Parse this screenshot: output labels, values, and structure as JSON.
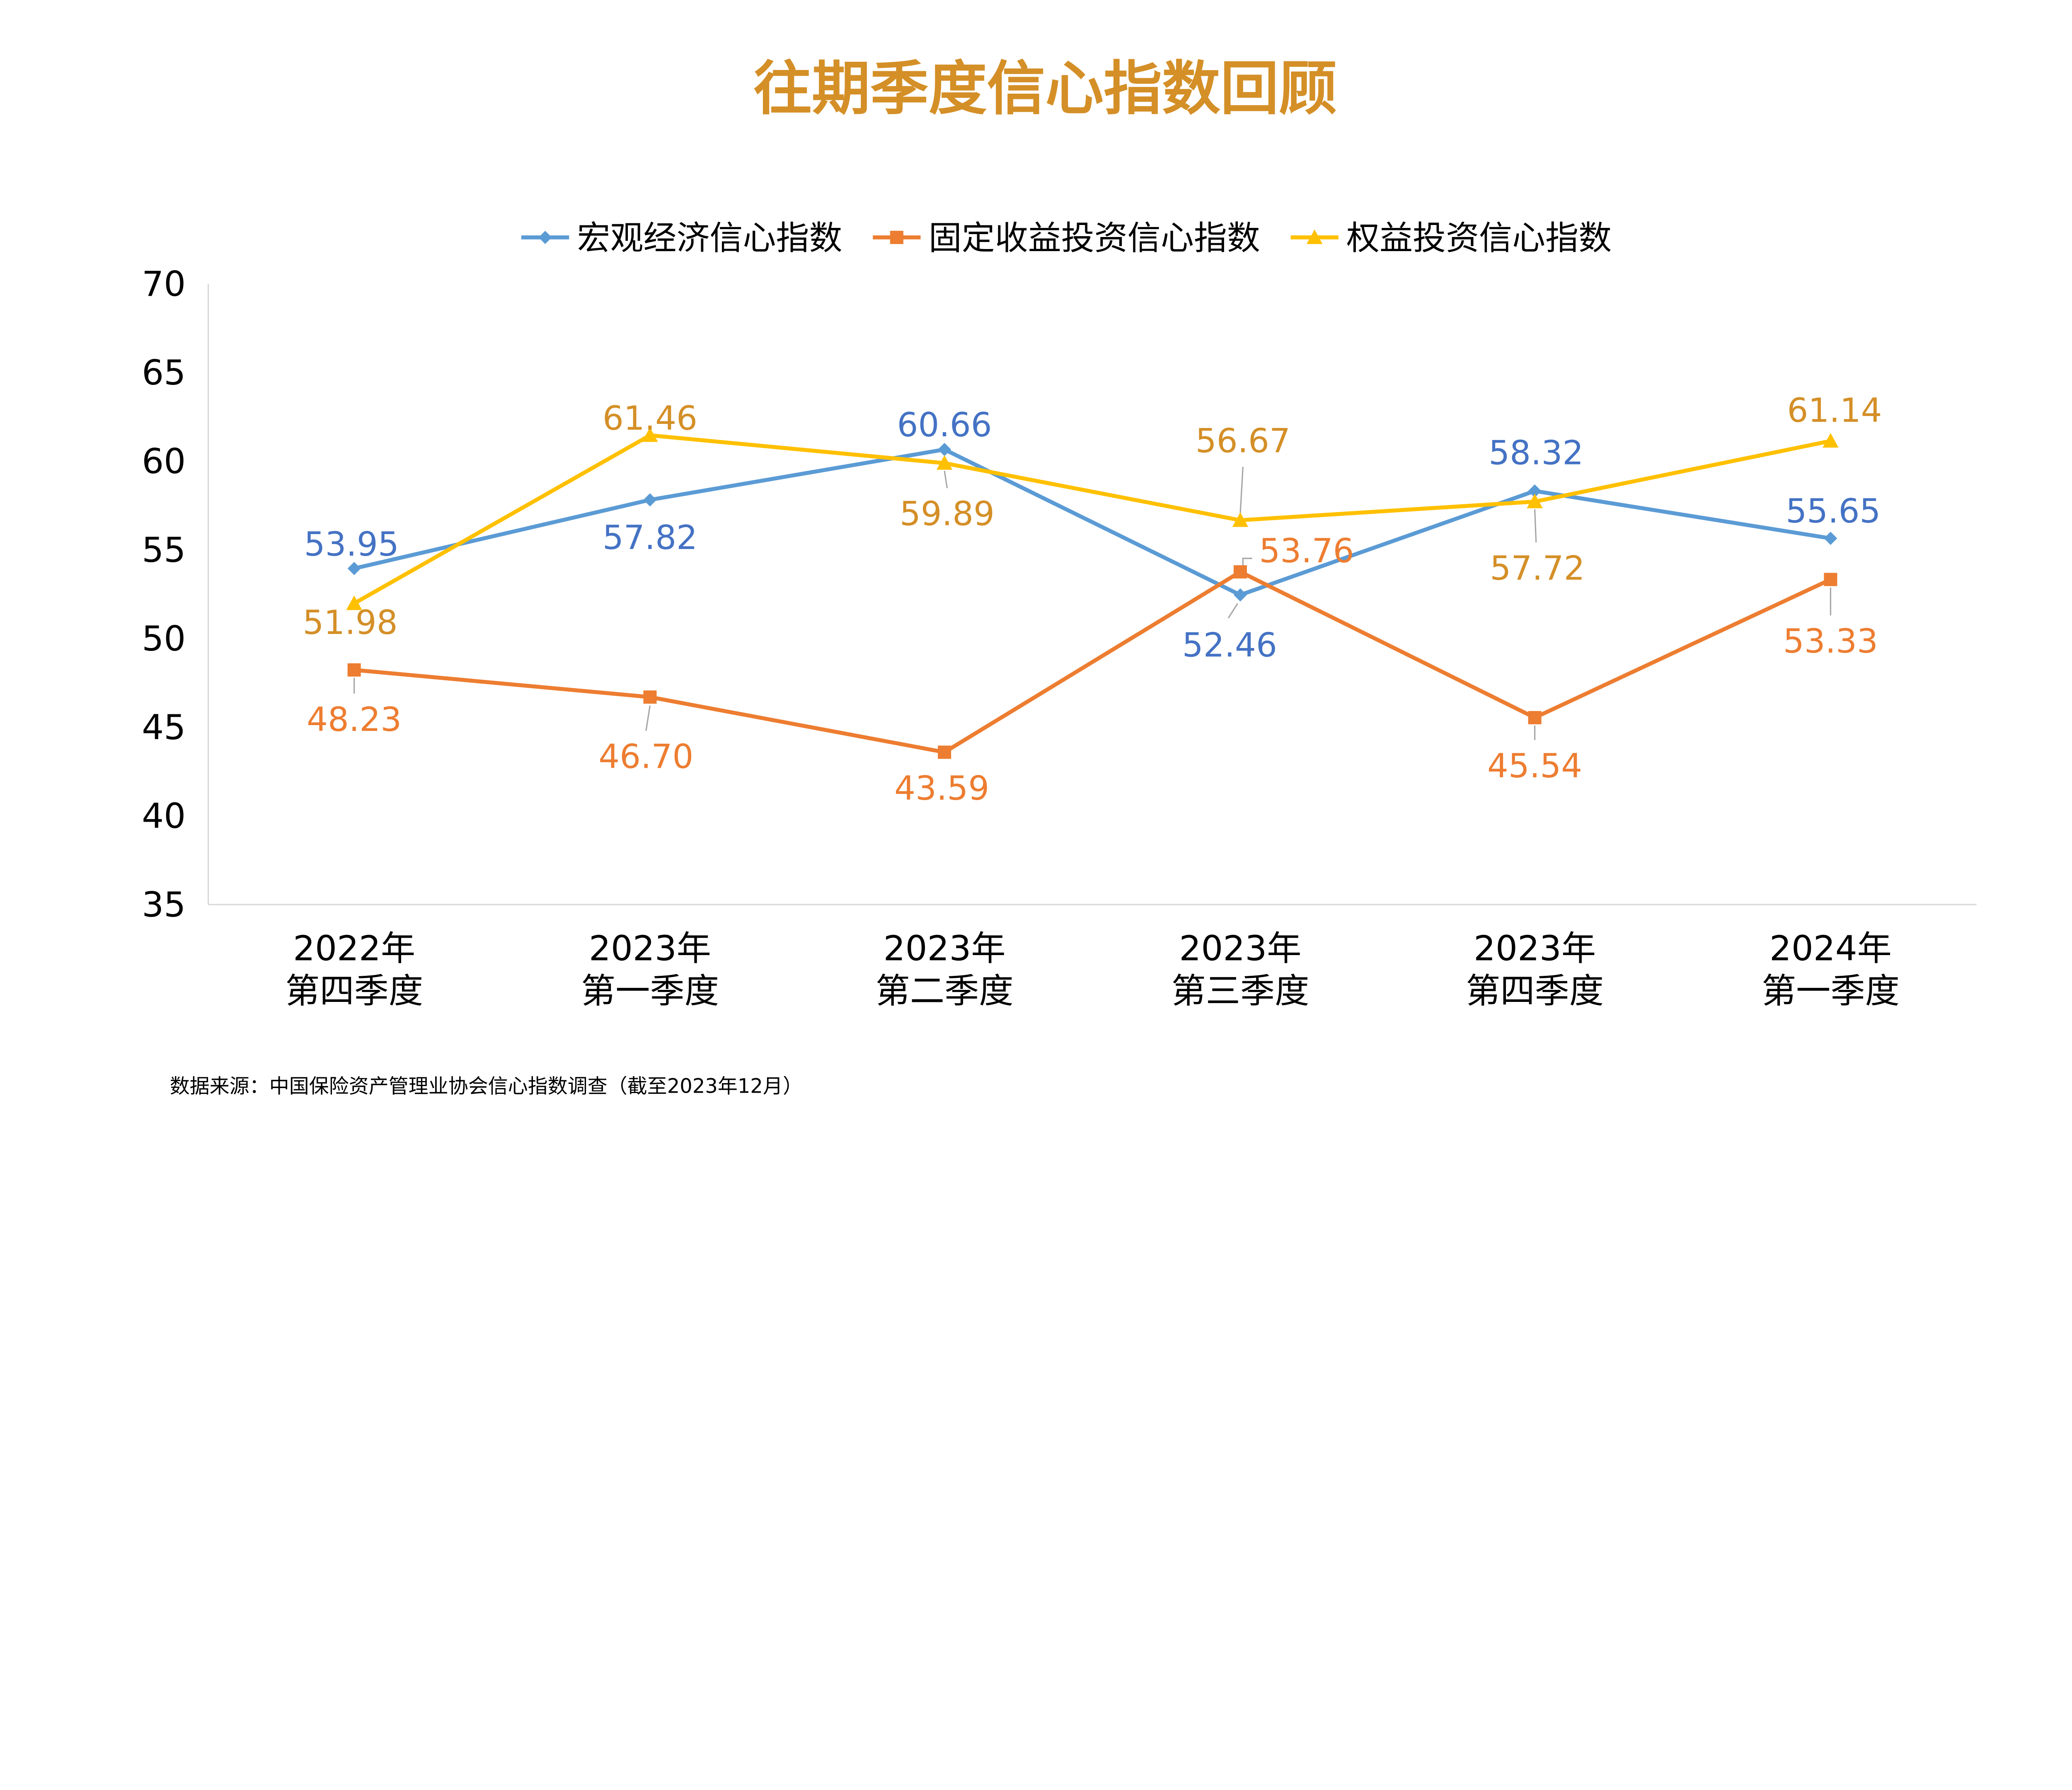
{
  "title": "往期季度信心指数回顾",
  "footnote": "数据来源：中国保险资产管理业协会信心指数调查（截至2023年12月）",
  "colors": {
    "title": "#D48F27",
    "blue": "#5B9BD5",
    "blue_label": "#4472C4",
    "orange": "#ED7D31",
    "yellow": "#FFC000",
    "yellow_label": "#D48F27",
    "axis": "#D9D9D9"
  },
  "chart_data": {
    "type": "line",
    "categories": [
      [
        "2022年",
        "第四季度"
      ],
      [
        "2023年",
        "第一季度"
      ],
      [
        "2023年",
        "第二季度"
      ],
      [
        "2023年",
        "第三季度"
      ],
      [
        "2023年",
        "第四季度"
      ],
      [
        "2024年",
        "第一季度"
      ]
    ],
    "ylim": [
      35,
      70
    ],
    "yticks": [
      35,
      40,
      45,
      50,
      55,
      60,
      65,
      70
    ],
    "grid": false,
    "legend": "top",
    "series": [
      {
        "name": "宏观经济信心指数",
        "marker": "diamond",
        "values": [
          53.95,
          57.82,
          60.66,
          52.46,
          58.32,
          55.65
        ],
        "labels": [
          "53.95",
          "57.82",
          "60.66",
          "52.46",
          "58.32",
          "55.65"
        ]
      },
      {
        "name": "固定收益投资信心指数",
        "marker": "square",
        "values": [
          48.23,
          46.7,
          43.59,
          53.76,
          45.54,
          53.33
        ],
        "labels": [
          "48.23",
          "46.70",
          "43.59",
          "53.76",
          "45.54",
          "53.33"
        ]
      },
      {
        "name": "权益投资信心指数",
        "marker": "triangle",
        "values": [
          51.98,
          61.46,
          59.89,
          56.67,
          57.72,
          61.14
        ],
        "labels": [
          "51.98",
          "61.46",
          "59.89",
          "56.67",
          "57.72",
          "61.14"
        ]
      }
    ]
  }
}
